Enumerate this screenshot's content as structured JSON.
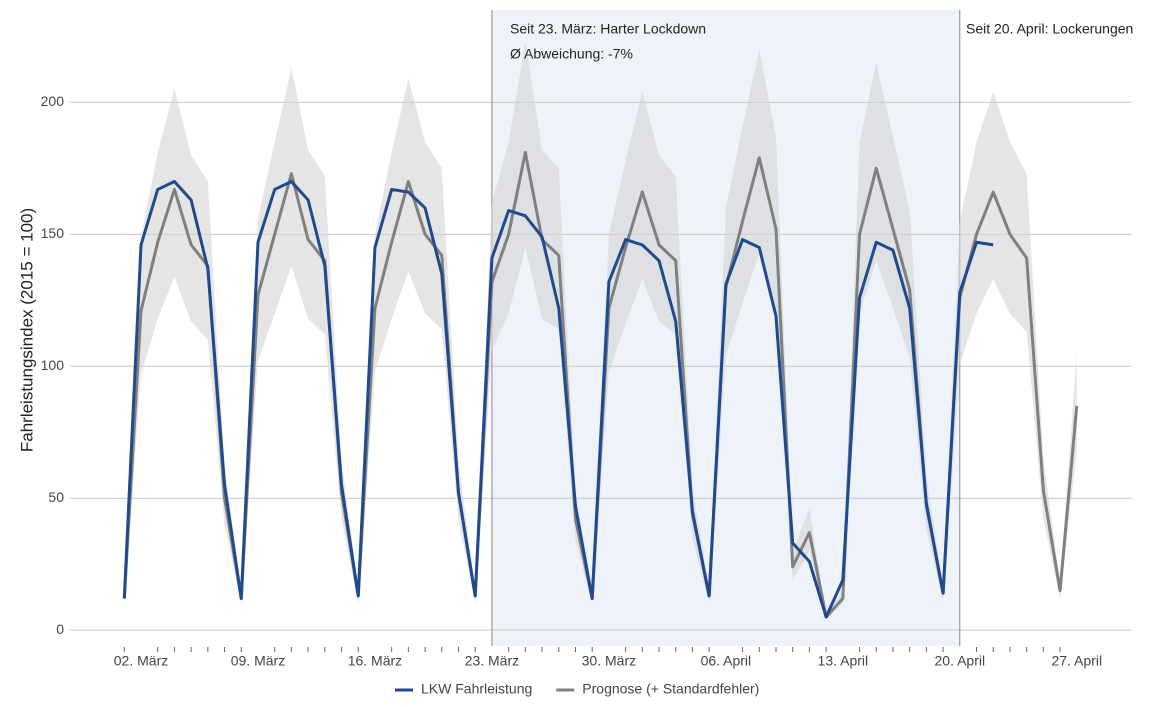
{
  "chart_data": {
    "type": "line",
    "ylabel": "Fahrleistungsindex (2015 = 100)",
    "categories": [
      null,
      "02. März",
      null,
      null,
      null,
      null,
      null,
      null,
      "09. März",
      null,
      null,
      null,
      null,
      null,
      null,
      "16. März",
      null,
      null,
      null,
      null,
      null,
      null,
      "23. März",
      null,
      null,
      null,
      null,
      null,
      null,
      "30. März",
      null,
      null,
      null,
      null,
      null,
      null,
      "06. April",
      null,
      null,
      null,
      null,
      null,
      null,
      "13. April",
      null,
      null,
      null,
      null,
      null,
      null,
      "20. April",
      null,
      null,
      null,
      null,
      null,
      null,
      "27. April"
    ],
    "series": [
      {
        "name": "LKW Fahrleistung",
        "color": "#1f4a8f",
        "values": [
          12,
          146,
          167,
          170,
          163,
          137,
          55,
          12,
          147,
          167,
          170,
          163,
          138,
          55,
          13,
          145,
          167,
          166,
          160,
          135,
          52,
          13,
          141,
          159,
          157,
          149,
          122,
          47,
          12,
          132,
          148,
          146,
          140,
          117,
          45,
          13,
          131,
          148,
          145,
          119,
          33,
          26,
          5,
          19,
          126,
          147,
          144,
          122,
          48,
          14,
          128,
          147,
          146,
          null,
          null,
          null,
          null,
          null
        ]
      },
      {
        "name": "Prognose (+ Standardfehler)",
        "color": "#808080",
        "band_color": "#d4d4d4",
        "values": [
          12,
          121,
          147,
          167,
          146,
          138,
          50,
          12,
          127,
          150,
          173,
          148,
          140,
          52,
          13,
          122,
          147,
          170,
          150,
          142,
          52,
          13,
          132,
          150,
          181,
          148,
          142,
          42,
          12,
          122,
          145,
          166,
          146,
          140,
          44,
          13,
          130,
          155,
          179,
          152,
          24,
          37,
          5,
          12,
          150,
          175,
          152,
          129,
          47,
          14,
          126,
          150,
          166,
          150,
          141,
          53,
          15,
          85
        ],
        "upper": [
          15,
          149,
          181,
          205,
          180,
          170,
          62,
          15,
          156,
          185,
          213,
          182,
          172,
          64,
          16,
          150,
          181,
          209,
          185,
          175,
          64,
          16,
          162,
          185,
          223,
          182,
          175,
          52,
          15,
          150,
          178,
          204,
          180,
          172,
          54,
          16,
          160,
          191,
          220,
          187,
          30,
          46,
          6,
          15,
          185,
          215,
          187,
          159,
          58,
          17,
          155,
          185,
          204,
          185,
          173,
          65,
          18,
          105
        ],
        "lower": [
          10,
          97,
          118,
          134,
          117,
          110,
          40,
          10,
          102,
          120,
          138,
          118,
          112,
          42,
          10,
          98,
          118,
          136,
          120,
          114,
          42,
          10,
          106,
          120,
          145,
          118,
          114,
          34,
          10,
          98,
          116,
          133,
          117,
          112,
          35,
          10,
          104,
          124,
          143,
          122,
          19,
          30,
          4,
          10,
          120,
          140,
          122,
          103,
          38,
          11,
          101,
          120,
          133,
          120,
          113,
          42,
          12,
          68
        ]
      }
    ],
    "ylim": [
      -6,
      235
    ],
    "yticks": [
      0,
      50,
      100,
      150,
      200
    ],
    "grid": true,
    "shade": {
      "from": 22,
      "to": 50,
      "color": "#eef3fa"
    },
    "annotations": [
      "Seit 23. März: Harter Lockdown",
      "Ø Abweichung: -7%",
      "Seit 20. April: Lockerungen"
    ],
    "legend": "bottom"
  }
}
